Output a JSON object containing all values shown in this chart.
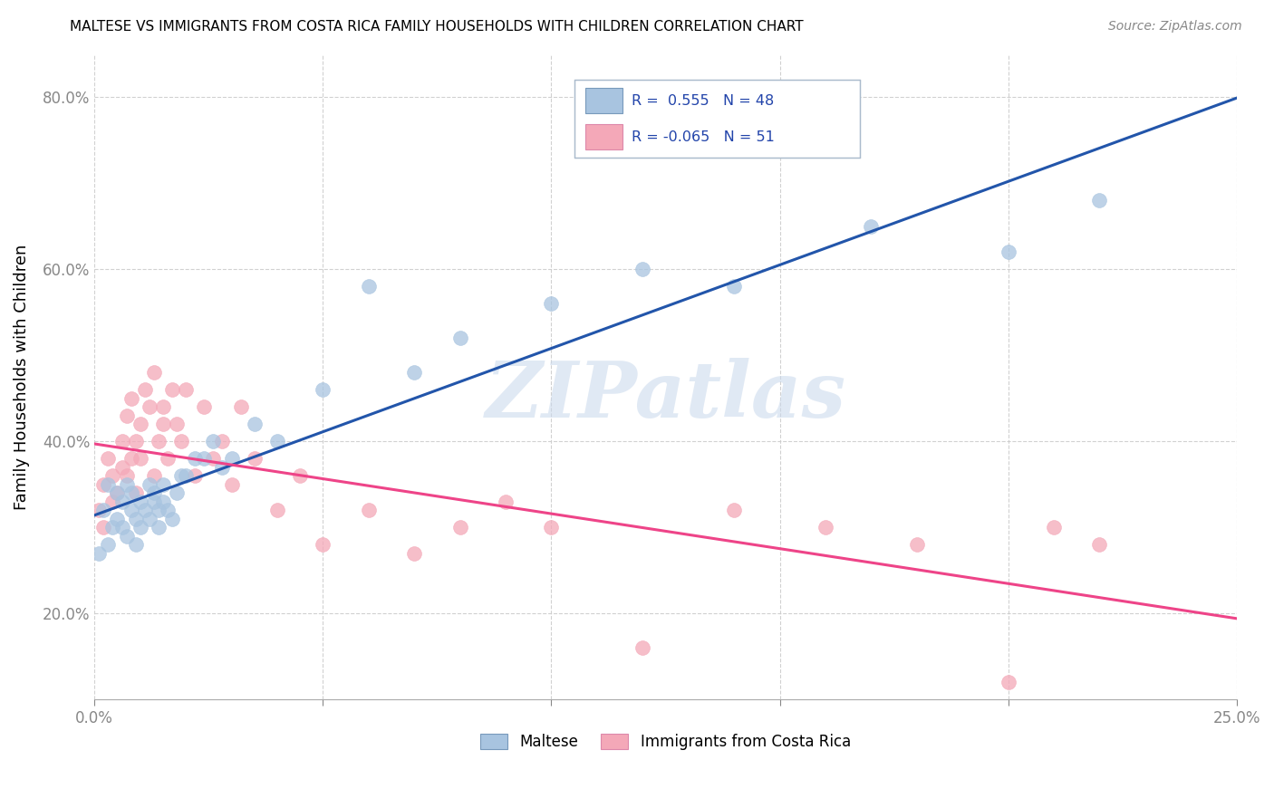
{
  "title": "MALTESE VS IMMIGRANTS FROM COSTA RICA FAMILY HOUSEHOLDS WITH CHILDREN CORRELATION CHART",
  "source": "Source: ZipAtlas.com",
  "ylabel": "Family Households with Children",
  "xmin": 0.0,
  "xmax": 0.25,
  "ymin": 0.1,
  "ymax": 0.85,
  "blue_color": "#A8C4E0",
  "pink_color": "#F4A8B8",
  "blue_line_color": "#2255AA",
  "pink_line_color": "#EE4488",
  "watermark_text": "ZIPatlas",
  "legend_r1": "R =  0.555",
  "legend_n1": "N = 48",
  "legend_r2": "R = -0.065",
  "legend_n2": "N = 51",
  "maltese_x": [
    0.001,
    0.002,
    0.003,
    0.003,
    0.004,
    0.005,
    0.005,
    0.006,
    0.006,
    0.007,
    0.007,
    0.008,
    0.008,
    0.009,
    0.009,
    0.01,
    0.01,
    0.011,
    0.012,
    0.012,
    0.013,
    0.013,
    0.014,
    0.014,
    0.015,
    0.015,
    0.016,
    0.017,
    0.018,
    0.019,
    0.02,
    0.022,
    0.024,
    0.026,
    0.028,
    0.03,
    0.035,
    0.04,
    0.05,
    0.06,
    0.07,
    0.08,
    0.1,
    0.12,
    0.14,
    0.17,
    0.2,
    0.22
  ],
  "maltese_y": [
    0.27,
    0.32,
    0.28,
    0.35,
    0.3,
    0.34,
    0.31,
    0.33,
    0.3,
    0.35,
    0.29,
    0.34,
    0.32,
    0.28,
    0.31,
    0.33,
    0.3,
    0.32,
    0.35,
    0.31,
    0.33,
    0.34,
    0.3,
    0.32,
    0.33,
    0.35,
    0.32,
    0.31,
    0.34,
    0.36,
    0.36,
    0.38,
    0.38,
    0.4,
    0.37,
    0.38,
    0.42,
    0.4,
    0.46,
    0.58,
    0.48,
    0.52,
    0.56,
    0.6,
    0.58,
    0.65,
    0.62,
    0.68
  ],
  "costarica_x": [
    0.001,
    0.002,
    0.002,
    0.003,
    0.004,
    0.004,
    0.005,
    0.006,
    0.006,
    0.007,
    0.007,
    0.008,
    0.008,
    0.009,
    0.009,
    0.01,
    0.01,
    0.011,
    0.012,
    0.013,
    0.013,
    0.014,
    0.015,
    0.015,
    0.016,
    0.017,
    0.018,
    0.019,
    0.02,
    0.022,
    0.024,
    0.026,
    0.028,
    0.03,
    0.032,
    0.035,
    0.04,
    0.045,
    0.05,
    0.06,
    0.07,
    0.08,
    0.09,
    0.1,
    0.12,
    0.14,
    0.16,
    0.18,
    0.2,
    0.21,
    0.22
  ],
  "costarica_y": [
    0.32,
    0.35,
    0.3,
    0.38,
    0.33,
    0.36,
    0.34,
    0.4,
    0.37,
    0.43,
    0.36,
    0.45,
    0.38,
    0.34,
    0.4,
    0.42,
    0.38,
    0.46,
    0.44,
    0.36,
    0.48,
    0.4,
    0.44,
    0.42,
    0.38,
    0.46,
    0.42,
    0.4,
    0.46,
    0.36,
    0.44,
    0.38,
    0.4,
    0.35,
    0.44,
    0.38,
    0.32,
    0.36,
    0.28,
    0.32,
    0.27,
    0.3,
    0.33,
    0.3,
    0.16,
    0.32,
    0.3,
    0.28,
    0.12,
    0.3,
    0.28
  ]
}
